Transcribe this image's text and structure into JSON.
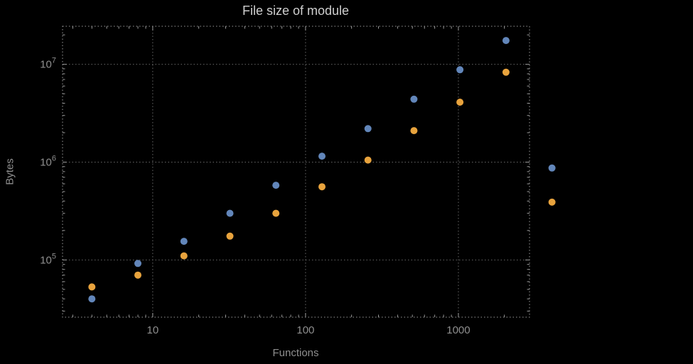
{
  "title": "File size of module",
  "xlabel": "Functions",
  "ylabel": "Bytes",
  "colors": {
    "background": "#000000",
    "grid": "#676767",
    "frame": "#9a9a9a",
    "tick_text": "#8f8f8f",
    "label_text": "#8f8f8f",
    "title_text": "#cfcfcf",
    "series_blue": "#6286ba",
    "series_orange": "#e8a33d"
  },
  "axes": {
    "x_ticks": [
      {
        "label": "10",
        "value": 10
      },
      {
        "label": "100",
        "value": 100
      },
      {
        "label": "1000",
        "value": 1000
      }
    ],
    "y_ticks": [
      {
        "base": "10",
        "exp": "5",
        "value": 100000
      },
      {
        "base": "10",
        "exp": "6",
        "value": 1000000
      },
      {
        "base": "10",
        "exp": "7",
        "value": 10000000
      }
    ]
  },
  "chart_data": {
    "type": "scatter",
    "title": "File size of module",
    "xlabel": "Functions",
    "ylabel": "Bytes",
    "x_scale": "log",
    "y_scale": "log",
    "grid": "dotted",
    "legend": "none",
    "x_range": [
      2.57,
      2920
    ],
    "y_range": [
      26000,
      24500000
    ],
    "x": [
      4,
      8,
      16,
      32,
      64,
      128,
      256,
      512,
      1024,
      2048,
      4096
    ],
    "series": [
      {
        "name": "series-blue",
        "color": "#6286ba",
        "values": [
          40000,
          92000,
          155000,
          300000,
          580000,
          1150000,
          2200000,
          4400000,
          8800000,
          17500000,
          870000
        ]
      },
      {
        "name": "series-orange",
        "color": "#e8a33d",
        "values": [
          53000,
          70000,
          110000,
          175000,
          300000,
          560000,
          1050000,
          2100000,
          4100000,
          8300000,
          390000
        ]
      }
    ]
  }
}
